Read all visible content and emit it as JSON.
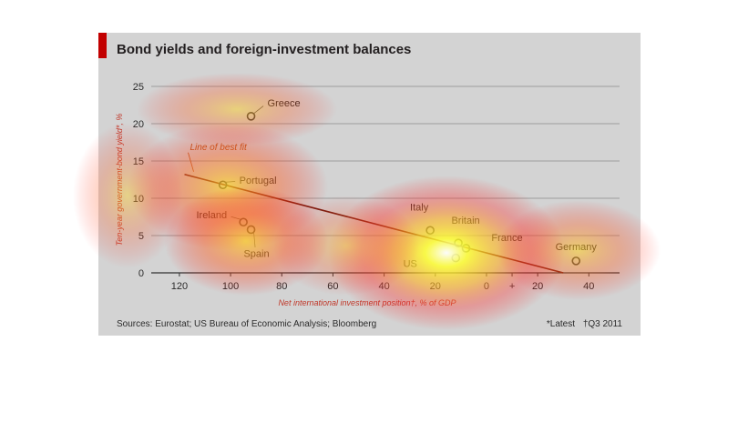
{
  "title": "Bond yields and foreign-investment balances",
  "sources": "Sources: Eurostat; US Bureau of Economic Analysis; Bloomberg",
  "footnotes": [
    "*Latest",
    "†Q3 2011"
  ],
  "colors": {
    "accent": "#c20000",
    "panel": "#d3d3d3",
    "fit_line": "#6e1a0f",
    "point": "#333333"
  },
  "chart_data": {
    "type": "scatter",
    "xlabel": "Net international investment position†, % of GDP",
    "ylabel": "Ten-year government-bond yield*, %",
    "x_axis_reversed": true,
    "xlim": [
      131,
      -52
    ],
    "ylim": [
      0,
      25
    ],
    "x_ticks": [
      {
        "value": 120,
        "label": "120"
      },
      {
        "value": 100,
        "label": "100"
      },
      {
        "value": 80,
        "label": "80"
      },
      {
        "value": 60,
        "label": "60"
      },
      {
        "value": 40,
        "label": "40"
      },
      {
        "value": 20,
        "label": "20"
      },
      {
        "value": 0,
        "label": "0"
      },
      {
        "value": -10,
        "label": "+"
      },
      {
        "value": -20,
        "label": "20"
      },
      {
        "value": -40,
        "label": "40"
      }
    ],
    "y_ticks": [
      0,
      5,
      10,
      15,
      20,
      25
    ],
    "grid": true,
    "points": [
      {
        "label": "Greece",
        "x": 92,
        "y": 21.0
      },
      {
        "label": "Portugal",
        "x": 103,
        "y": 11.8
      },
      {
        "label": "Ireland",
        "x": 95,
        "y": 6.8
      },
      {
        "label": "Spain",
        "x": 92,
        "y": 5.8
      },
      {
        "label": "Italy",
        "x": 22,
        "y": 5.7
      },
      {
        "label": "Britain",
        "x": 11,
        "y": 4.0
      },
      {
        "label": "France",
        "x": 8,
        "y": 3.3
      },
      {
        "label": "US",
        "x": 12,
        "y": 2.0
      },
      {
        "label": "Germany",
        "x": -35,
        "y": 1.6
      }
    ],
    "best_fit": {
      "label": "Line of best fit",
      "x": [
        118,
        -30
      ],
      "y": [
        13.2,
        0
      ]
    }
  }
}
